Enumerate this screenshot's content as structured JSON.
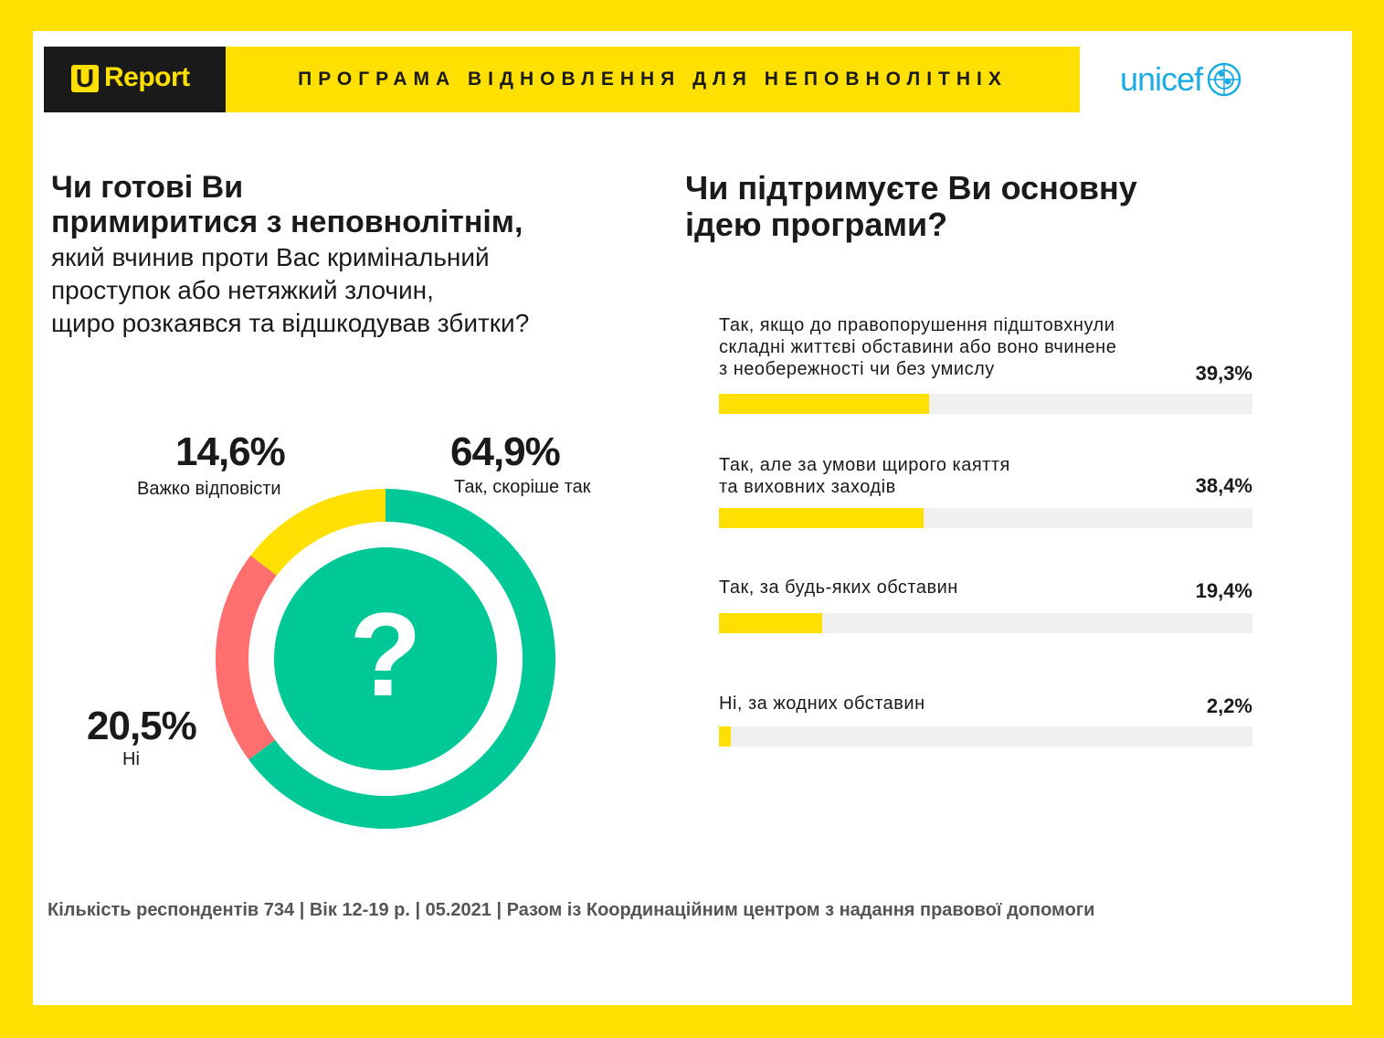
{
  "header": {
    "logo_u": "U",
    "logo_report": "Report",
    "program_title": "ПРОГРАМА ВІДНОВЛЕННЯ ДЛЯ НЕПОВНОЛІТНІХ",
    "partner": "unicef"
  },
  "left": {
    "question_bold_1": "Чи готові Ви",
    "question_bold_2": "примиритися з неповнолітнім,",
    "question_reg_1": "який вчинив проти Вас кримінальний",
    "question_reg_2": "проступок або нетяжкий злочин,",
    "question_reg_3": "щиро розкаявся та відшкодував збитки?",
    "center_mark": "?"
  },
  "right": {
    "question_1": "Чи підтримуєте Ви основну",
    "question_2": "ідею програми?"
  },
  "footer": {
    "text": "Кількість респондентів 734 |  Вік 12-19 р. | 05.2021 | Разом із Координаційним центром з надання правової допомоги"
  },
  "colors": {
    "yellow": "#FFE000",
    "green": "#00C896",
    "red": "#FF6F6F",
    "track": "#F0F0F0"
  },
  "chart_data": [
    {
      "type": "pie",
      "variant": "donut",
      "slices": [
        {
          "label": "Так, скоріше так",
          "value": 64.9,
          "display": "64,9%",
          "color": "#00C896"
        },
        {
          "label": "Ні",
          "value": 20.5,
          "display": "20,5%",
          "color": "#FF6F6F"
        },
        {
          "label": "Важко відповісти",
          "value": 14.6,
          "display": "14,6%",
          "color": "#FFE000"
        }
      ]
    },
    {
      "type": "bar",
      "orientation": "horizontal",
      "xlim": [
        0,
        100
      ],
      "categories": [
        "Так, якщо до правопорушення підштовхнули складні життєві обставини або воно вчинене з необережності чи без умислу",
        "Так, але за умови щирого каяття та виховних заходів",
        "Так, за будь-яких обставин",
        "Ні, за жодних обставин"
      ],
      "category_lines": [
        [
          "Так, якщо до правопорушення підштовхнули",
          "складні життєві обставини або воно вчинене",
          "з необережності чи без умислу"
        ],
        [
          "Так, але за умови щирого каяття",
          "та виховних заходів"
        ],
        [
          "Так, за будь-яких обставин"
        ],
        [
          "Ні, за жодних обставин"
        ]
      ],
      "values": [
        39.3,
        38.4,
        19.4,
        2.2
      ],
      "value_labels": [
        "39,3%",
        "38,4%",
        "19,4%",
        "2,2%"
      ]
    }
  ]
}
